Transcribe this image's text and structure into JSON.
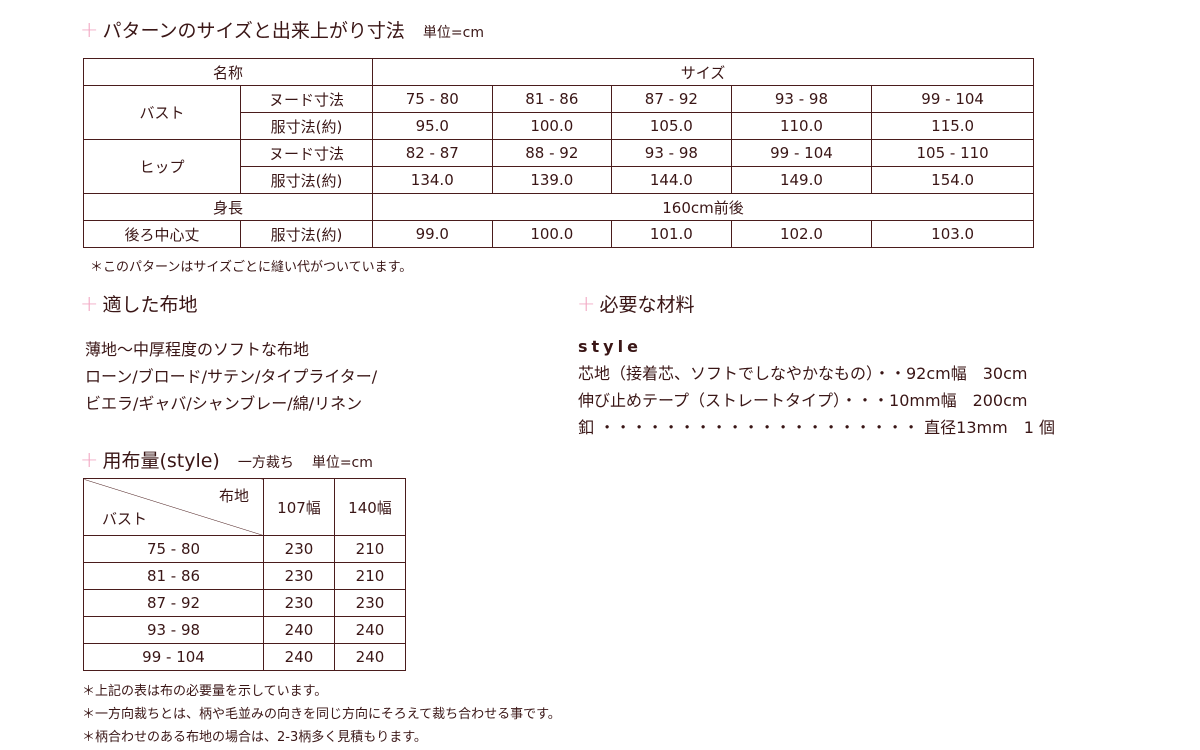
{
  "size_section": {
    "title": "パターンのサイズと出来上がり寸法",
    "unit": "単位=cm",
    "header": {
      "name": "名称",
      "size": "サイズ"
    },
    "rows": [
      {
        "group": "バスト",
        "label": "ヌード寸法",
        "values": [
          "75 - 80",
          "81 - 86",
          "87 - 92",
          "93 - 98",
          "99 - 104"
        ]
      },
      {
        "label": "服寸法(約)",
        "values": [
          "95.0",
          "100.0",
          "105.0",
          "110.0",
          "115.0"
        ]
      },
      {
        "group": "ヒップ",
        "label": "ヌード寸法",
        "values": [
          "82 - 87",
          "88 - 92",
          "93 - 98",
          "99 - 104",
          "105 - 110"
        ]
      },
      {
        "label": "服寸法(約)",
        "values": [
          "134.0",
          "139.0",
          "144.0",
          "149.0",
          "154.0"
        ]
      }
    ],
    "height": {
      "label": "身長",
      "value": "160cm前後"
    },
    "back": {
      "group": "後ろ中心丈",
      "label": "服寸法(約)",
      "values": [
        "99.0",
        "100.0",
        "101.0",
        "102.0",
        "103.0"
      ]
    },
    "note": "＊このパターンはサイズごとに縫い代がついています。"
  },
  "fabric_section": {
    "title": "適した布地",
    "lines": [
      "薄地～中厚程度のソフトな布地",
      "ローン/ブロード/サテン/タイプライター/",
      "ビエラ/ギャバ/シャンブレー/綿/リネン"
    ]
  },
  "materials_section": {
    "title": "必要な材料",
    "style": "style",
    "lines": [
      "芯地（接着芯、ソフトでしなやかなもの）・・92cm幅　30cm",
      "伸び止めテープ（ストレートタイプ）・・・10mm幅　200cm",
      "釦 ・・・・・・・・・・・・・・・・・・・・ 直径13mm　1 個"
    ]
  },
  "yardage_section": {
    "title": "用布量(style)",
    "cut": "一方裁ち",
    "unit": "単位=cm",
    "header": {
      "fabric": "布地",
      "bust": "バスト",
      "widths": [
        "107幅",
        "140幅"
      ]
    },
    "rows": [
      [
        "75 - 80",
        "230",
        "210"
      ],
      [
        "81 - 86",
        "230",
        "210"
      ],
      [
        "87 - 92",
        "230",
        "230"
      ],
      [
        "93 - 98",
        "240",
        "240"
      ],
      [
        "99 - 104",
        "240",
        "240"
      ]
    ],
    "notes": [
      "＊上記の表は布の必要量を示しています。",
      "＊一方向裁ちとは、柄や毛並みの向きを同じ方向にそろえて裁ち合わせる事です。",
      "＊柄合わせのある布地の場合は、2-3柄多く見積もります。"
    ]
  }
}
